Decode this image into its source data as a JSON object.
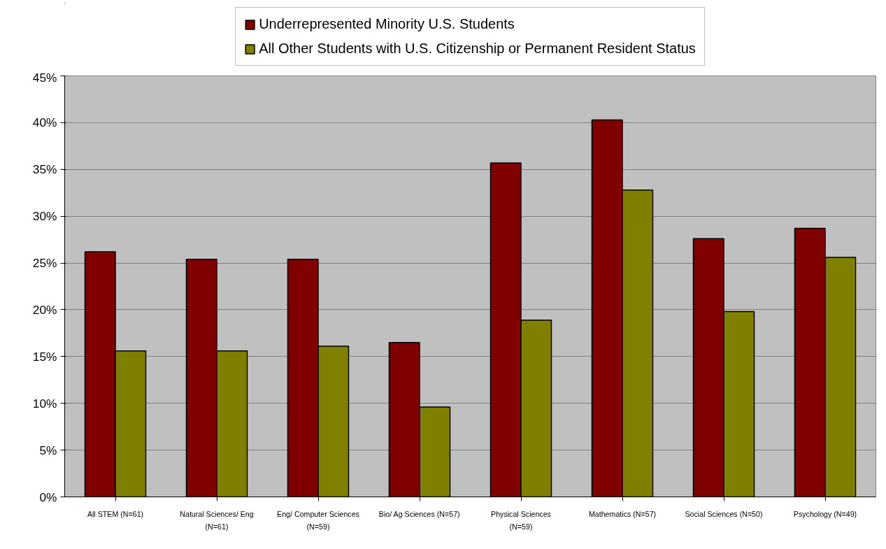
{
  "chart_data": {
    "type": "bar",
    "categories": [
      "All STEM (N=61)",
      "Natural Sciences/ Eng (N=61)",
      "Eng/ Computer Sciences (N=59)",
      "Bio/ Ag Sciences (N=57)",
      "Physical Sciences (N=59)",
      "Mathematics (N=57)",
      "Social Sciences (N=50)",
      "Psychology (N=49)"
    ],
    "series": [
      {
        "name": "Underrepresented Minority U.S. Students",
        "color": "#800000",
        "values": [
          26.2,
          25.4,
          25.4,
          16.5,
          35.7,
          40.3,
          27.6,
          28.7
        ]
      },
      {
        "name": "All Other Students with U.S. Citizenship or Permanent Resident Status",
        "color": "#808000",
        "values": [
          15.6,
          15.6,
          16.1,
          9.6,
          18.9,
          32.8,
          19.8,
          25.6
        ]
      }
    ],
    "ylim": [
      0,
      45
    ],
    "yticks": [
      {
        "value": 0,
        "label": "0%"
      },
      {
        "value": 5,
        "label": "5%"
      },
      {
        "value": 10,
        "label": "10%"
      },
      {
        "value": 15,
        "label": "15%"
      },
      {
        "value": 20,
        "label": "20%"
      },
      {
        "value": 25,
        "label": "25%"
      },
      {
        "value": 30,
        "label": "30%"
      },
      {
        "value": 35,
        "label": "35%"
      },
      {
        "value": 40,
        "label": "40%"
      },
      {
        "value": 45,
        "label": "45%"
      }
    ],
    "grid": "y",
    "legend": "top"
  }
}
